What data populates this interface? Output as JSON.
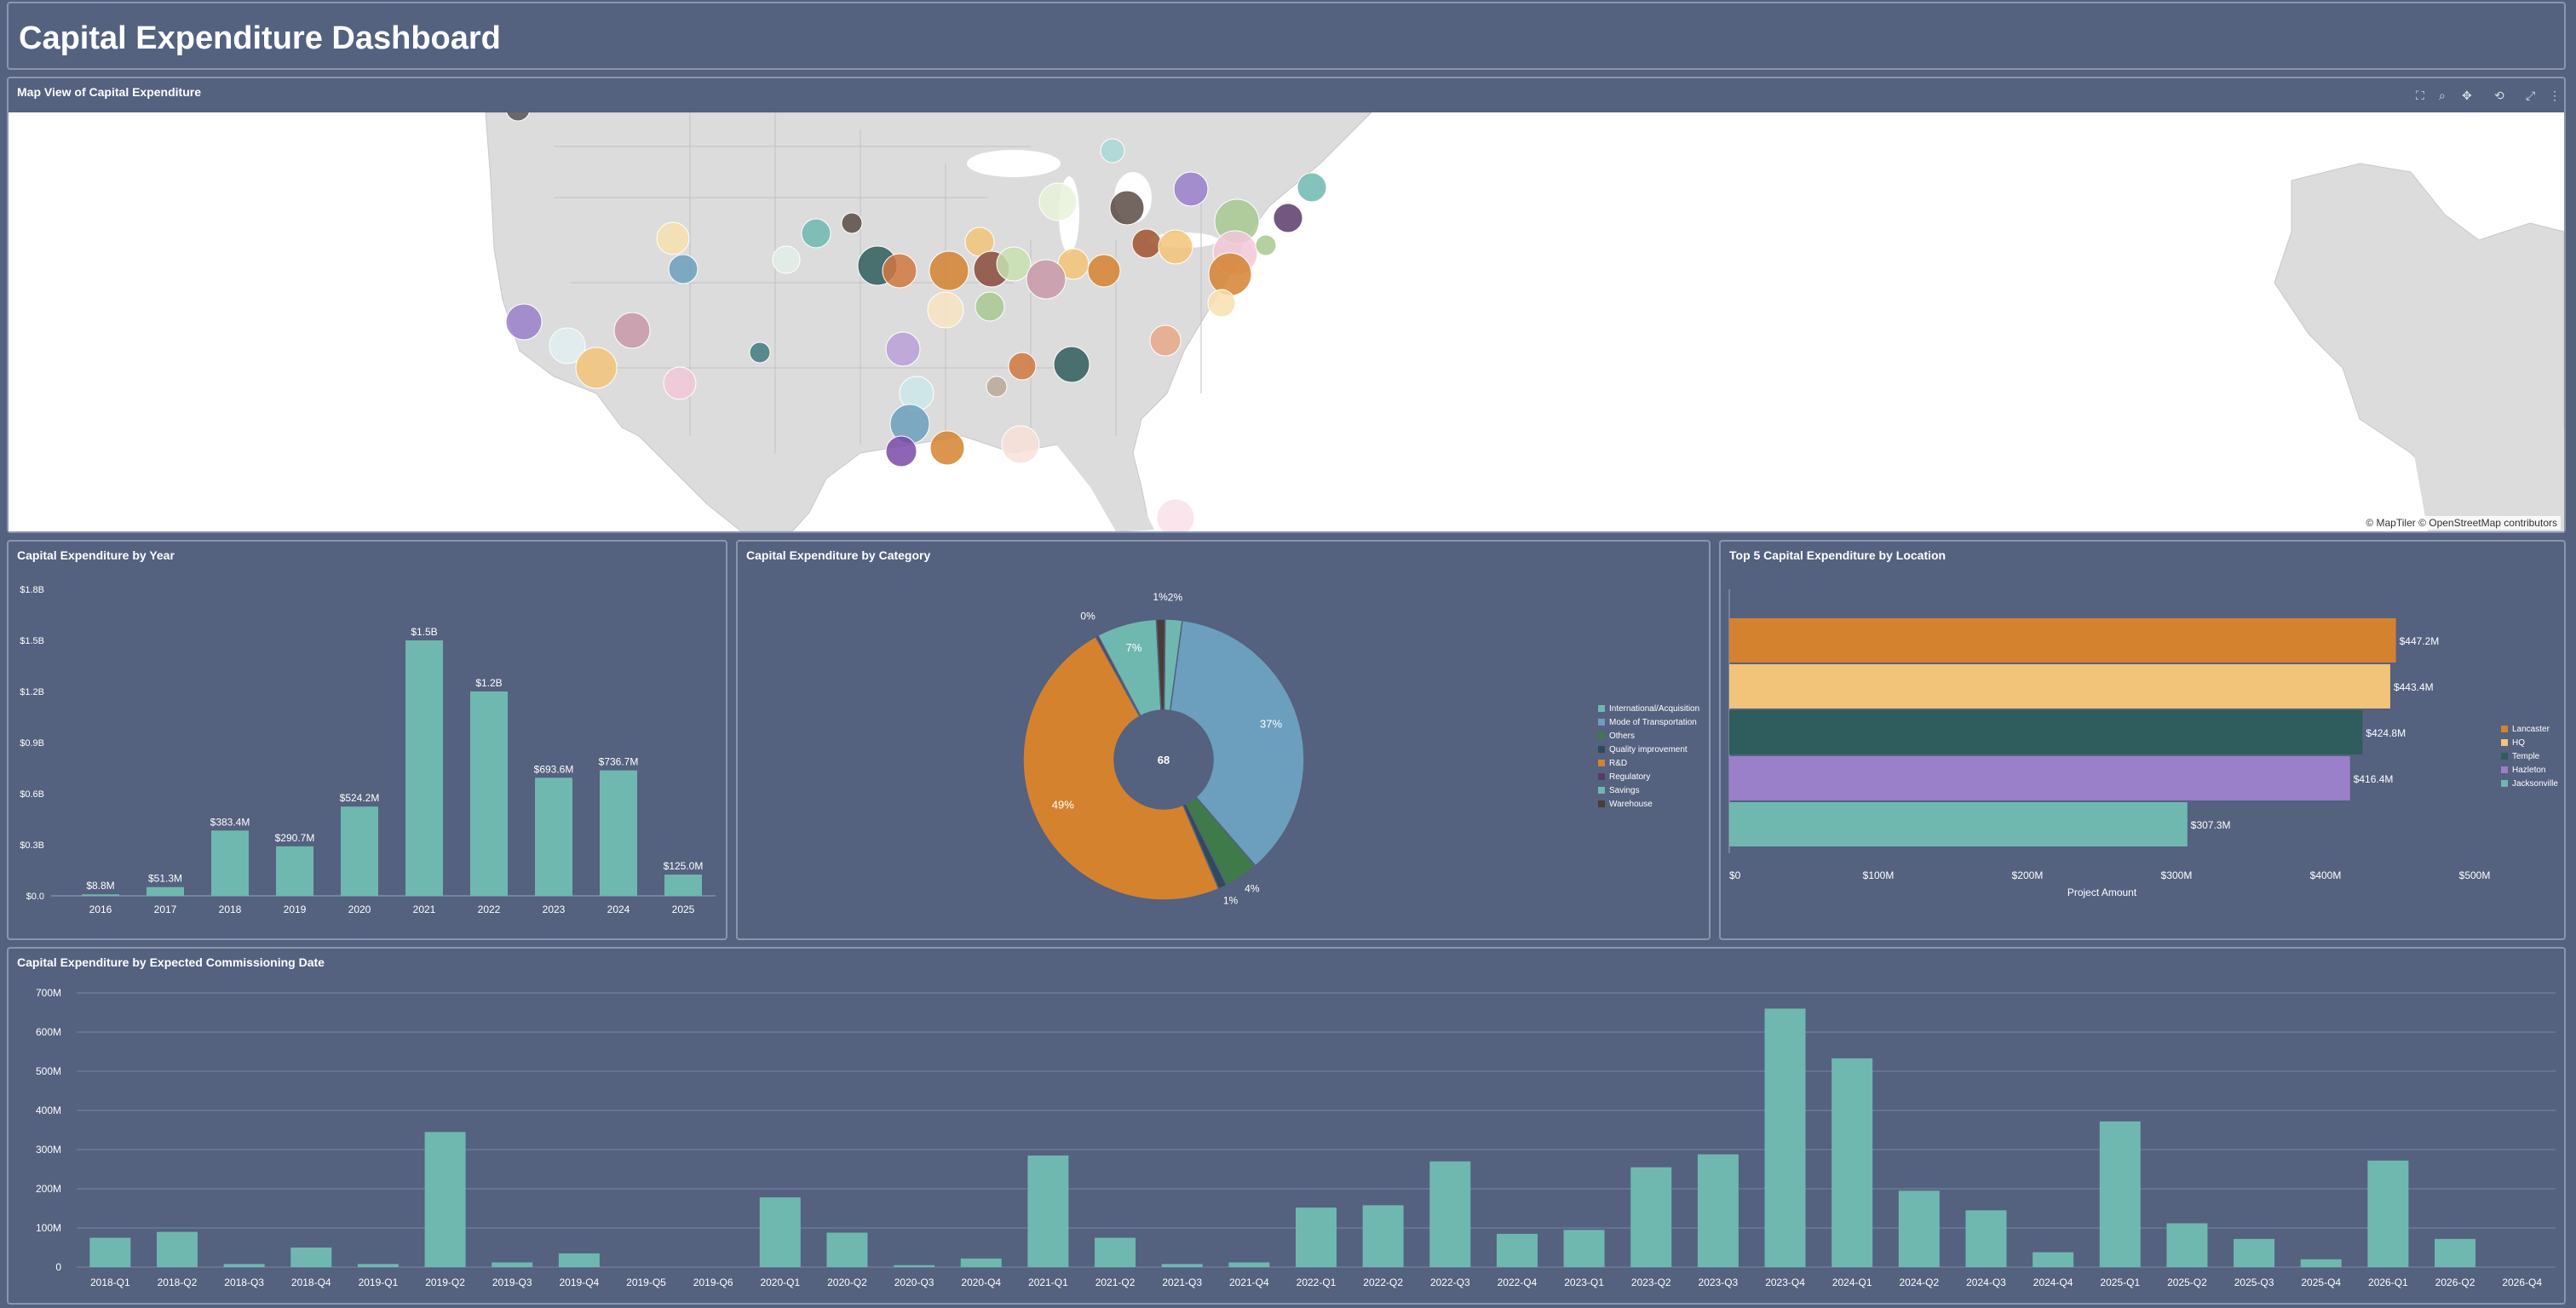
{
  "header": {
    "title": "Capital Expenditure Dashboard"
  },
  "map": {
    "title": "Map View of Capital Expenditure",
    "attribution": "© MapTiler © OpenStreetMap contributors",
    "toolbar": [
      "select-icon",
      "zoom-icon",
      "pan-icon",
      "reset-icon",
      "fullscreen-icon",
      "more-icon"
    ]
  },
  "by_year": {
    "title": "Capital Expenditure by Year",
    "chart_data": {
      "type": "bar",
      "categories": [
        "2016",
        "2017",
        "2018",
        "2019",
        "2020",
        "2021",
        "2022",
        "2023",
        "2024",
        "2025"
      ],
      "values": [
        0.0088,
        0.0513,
        0.3834,
        0.2907,
        0.5242,
        1.5,
        1.2,
        0.6936,
        0.7367,
        0.125
      ],
      "value_labels": [
        "$8.8M",
        "$51.3M",
        "$383.4M",
        "$290.7M",
        "$524.2M",
        "$1.5B",
        "$1.2B",
        "$693.6M",
        "$736.7M",
        "$125.0M"
      ],
      "yticks": [
        "$0.0",
        "$0.3B",
        "$0.6B",
        "$0.9B",
        "$1.2B",
        "$1.5B",
        "$1.8B"
      ],
      "ylim": [
        0,
        1.8
      ],
      "color": "#6fb8b0"
    }
  },
  "by_category": {
    "title": "Capital Expenditure by Category",
    "center_label": "68",
    "chart_data": {
      "type": "pie",
      "slices": [
        {
          "name": "International/Acquisition",
          "value": 2,
          "label": "2%",
          "color": "#6fb8b0"
        },
        {
          "name": "Mode of Transportation",
          "value": 37,
          "label": "37%",
          "color": "#6b9fbd"
        },
        {
          "name": "Others",
          "value": 4,
          "label": "4%",
          "color": "#3f7a4a"
        },
        {
          "name": "Quality improvement",
          "value": 1,
          "label": "1%",
          "color": "#2f4a5c"
        },
        {
          "name": "R&D",
          "value": 49,
          "label": "49%",
          "color": "#d5822f"
        },
        {
          "name": "Regulatory",
          "value": 0.3,
          "label": "0%",
          "color": "#5a3a6a"
        },
        {
          "name": "Savings",
          "value": 7,
          "label": "7%",
          "color": "#6fb8b0"
        },
        {
          "name": "Warehouse",
          "value": 1,
          "label": "1%",
          "color": "#4a3c36"
        }
      ]
    }
  },
  "by_location": {
    "title": "Top 5 Capital Expenditure by Location",
    "chart_data": {
      "type": "bar",
      "orientation": "horizontal",
      "categories": [
        "Lancaster",
        "HQ",
        "Temple",
        "Hazleton",
        "Jacksonville"
      ],
      "values": [
        447.2,
        443.4,
        424.8,
        416.4,
        307.3
      ],
      "value_labels": [
        "$447.2M",
        "$443.4M",
        "$424.8M",
        "$416.4M",
        "$307.3M"
      ],
      "colors": [
        "#d5822f",
        "#f2c479",
        "#2f5c5c",
        "#9a7fc9",
        "#6fb8b0"
      ],
      "xticks": [
        "$0",
        "$100M",
        "$200M",
        "$300M",
        "$400M",
        "$500M"
      ],
      "xlim": [
        0,
        500
      ],
      "xlabel": "Project Amount"
    }
  },
  "by_date": {
    "title": "Capital Expenditure by Expected Commissioning Date",
    "chart_data": {
      "type": "bar",
      "categories": [
        "2018-Q1",
        "2018-Q2",
        "2018-Q3",
        "2018-Q4",
        "2019-Q1",
        "2019-Q2",
        "2019-Q3",
        "2019-Q4",
        "2019-Q5",
        "2019-Q6",
        "2020-Q1",
        "2020-Q2",
        "2020-Q3",
        "2020-Q4",
        "2021-Q1",
        "2021-Q2",
        "2021-Q3",
        "2021-Q4",
        "2022-Q1",
        "2022-Q2",
        "2022-Q3",
        "2022-Q4",
        "2023-Q1",
        "2023-Q2",
        "2023-Q3",
        "2023-Q4",
        "2024-Q1",
        "2024-Q2",
        "2024-Q3",
        "2024-Q4",
        "2025-Q1",
        "2025-Q2",
        "2025-Q3",
        "2025-Q4",
        "2026-Q1",
        "2026-Q2",
        "2026-Q4"
      ],
      "values": [
        75,
        90,
        8,
        50,
        8,
        345,
        12,
        35,
        0,
        0,
        178,
        88,
        5,
        22,
        285,
        75,
        8,
        12,
        152,
        158,
        270,
        85,
        95,
        255,
        288,
        660,
        533,
        195,
        145,
        38,
        372,
        112,
        72,
        20,
        272,
        72,
        0
      ],
      "yticks": [
        "0",
        "100M",
        "200M",
        "300M",
        "400M",
        "500M",
        "600M",
        "700M"
      ],
      "ylim": [
        0,
        700
      ],
      "color": "#6fb8b0"
    }
  }
}
